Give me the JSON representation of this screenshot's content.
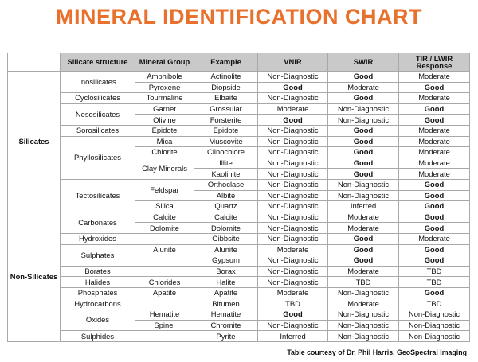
{
  "title": "MINERAL IDENTIFICATION CHART",
  "headers": {
    "structure": "Silicate structure",
    "group": "Mineral Group",
    "example": "Example",
    "vnir": "VNIR",
    "swir": "SWIR",
    "tir": "TIR / LWIR Response"
  },
  "categories": {
    "silicates": "Silicates",
    "non_silicates": "Non-Silicates"
  },
  "structures": {
    "inosilicates": "Inosilicates",
    "cyclosilicates": "Cyclosilicates",
    "nesosilicates": "Nesosilicates",
    "sorosilicates": "Sorosilicates",
    "phyllosilicates": "Phyllosilicates",
    "tectosilicates": "Tectosilicates",
    "carbonates": "Carbonates",
    "hydroxides": "Hydroxides",
    "sulphates": "Sulphates",
    "borates": "Borates",
    "halides": "Halides",
    "phosphates": "Phosphates",
    "hydrocarbons": "Hydrocarbons",
    "oxides": "Oxides",
    "sulphides": "Sulphides"
  },
  "groups": {
    "amphibole": "Amphibole",
    "pyroxene": "Pyroxene",
    "tourmaline": "Tourmaline",
    "garnet": "Garnet",
    "olivine": "Olivine",
    "epidote": "Epidote",
    "mica": "Mica",
    "chlorite": "Chlorite",
    "clay": "Clay Minerals",
    "feldspar": "Feldspar",
    "silica": "Silica",
    "calcite": "Calcite",
    "dolomite": "Dolomite",
    "alunite": "Alunite",
    "chlorides": "Chlorides",
    "apatite": "Apatite",
    "hematite": "Hematite",
    "spinel": "Spinel"
  },
  "rows": [
    {
      "example": "Actinolite",
      "vnir": "Non-Diagnostic",
      "swir": "Good",
      "tir": "Moderate"
    },
    {
      "example": "Diopside",
      "vnir": "Good",
      "swir": "Moderate",
      "tir": "Good"
    },
    {
      "example": "Elbaite",
      "vnir": "Non-Diagnostic",
      "swir": "Good",
      "tir": "Moderate"
    },
    {
      "example": "Grossular",
      "vnir": "Moderate",
      "swir": "Non-Diagnostic",
      "tir": "Good"
    },
    {
      "example": "Forsterite",
      "vnir": "Good",
      "swir": "Non-Diagnostic",
      "tir": "Good"
    },
    {
      "example": "Epidote",
      "vnir": "Non-Diagnostic",
      "swir": "Good",
      "tir": "Moderate"
    },
    {
      "example": "Muscovite",
      "vnir": "Non-Diagnostic",
      "swir": "Good",
      "tir": "Moderate"
    },
    {
      "example": "Clinochlore",
      "vnir": "Non-Diagnostic",
      "swir": "Good",
      "tir": "Moderate"
    },
    {
      "example": "Illite",
      "vnir": "Non-Diagnostic",
      "swir": "Good",
      "tir": "Moderate"
    },
    {
      "example": "Kaolinite",
      "vnir": "Non-Diagnostic",
      "swir": "Good",
      "tir": "Moderate"
    },
    {
      "example": "Orthoclase",
      "vnir": "Non-Diagnostic",
      "swir": "Non-Diagnostic",
      "tir": "Good"
    },
    {
      "example": "Albite",
      "vnir": "Non-Diagnostic",
      "swir": "Non-Diagnostic",
      "tir": "Good"
    },
    {
      "example": "Quartz",
      "vnir": "Non-Diagnostic",
      "swir": "Inferred",
      "tir": "Good"
    },
    {
      "example": "Calcite",
      "vnir": "Non-Diagnostic",
      "swir": "Moderate",
      "tir": "Good"
    },
    {
      "example": "Dolomite",
      "vnir": "Non-Diagnostic",
      "swir": "Moderate",
      "tir": "Good"
    },
    {
      "example": "Gibbsite",
      "vnir": "Non-Diagnostic",
      "swir": "Good",
      "tir": "Moderate"
    },
    {
      "example": "Alunite",
      "vnir": "Moderate",
      "swir": "Good",
      "tir": "Good"
    },
    {
      "example": "Gypsum",
      "vnir": "Non-Diagnostic",
      "swir": "Good",
      "tir": "Good"
    },
    {
      "example": "Borax",
      "vnir": "Non-Diagnostic",
      "swir": "Moderate",
      "tir": "TBD"
    },
    {
      "example": "Halite",
      "vnir": "Non-Diagnostic",
      "swir": "TBD",
      "tir": "TBD"
    },
    {
      "example": "Apatite",
      "vnir": "Moderate",
      "swir": "Non-Diagnostic",
      "tir": "Good"
    },
    {
      "example": "Bitumen",
      "vnir": "TBD",
      "swir": "Moderate",
      "tir": "TBD"
    },
    {
      "example": "Hematite",
      "vnir": "Good",
      "swir": "Non-Diagnostic",
      "tir": "Non-Diagnostic"
    },
    {
      "example": "Chromite",
      "vnir": "Non-Diagnostic",
      "swir": "Non-Diagnostic",
      "tir": "Non-Diagnostic"
    },
    {
      "example": "Pyrite",
      "vnir": "Inferred",
      "swir": "Non-Diagnostic",
      "tir": "Non-Diagnostic"
    }
  ],
  "credit": "Table courtesy of Dr. Phil Harris, GeoSpectral Imaging",
  "colors": {
    "title": "#e8712e",
    "header_bg": "#c9c9c9"
  }
}
